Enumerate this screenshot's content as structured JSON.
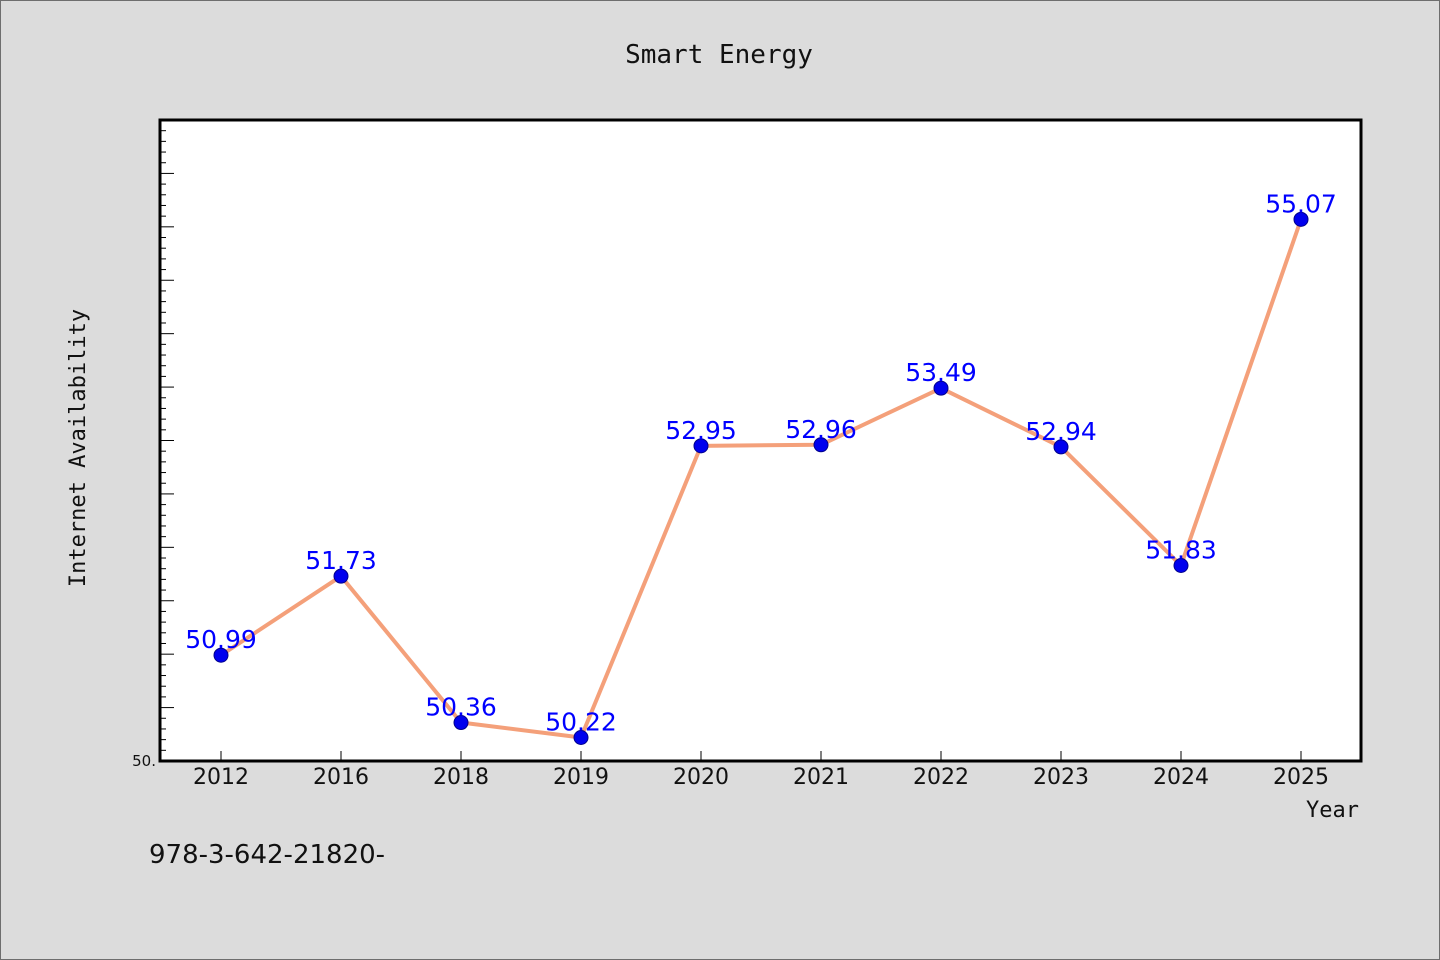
{
  "chart_data": {
    "type": "line",
    "title": "Smart Energy",
    "xlabel": "Year",
    "ylabel": "Internet Availability",
    "categories": [
      "2012",
      "2016",
      "2018",
      "2019",
      "2020",
      "2021",
      "2022",
      "2023",
      "2024",
      "2025"
    ],
    "series": [
      {
        "values": [
          50.99,
          51.73,
          50.36,
          50.22,
          52.95,
          52.96,
          53.49,
          52.94,
          51.83,
          55.07
        ],
        "data_labels": [
          "50.99",
          "51.73",
          "50.36",
          "50.22",
          "52.95",
          "52.96",
          "53.49",
          "52.94",
          "51.83",
          "55.07"
        ],
        "line_color": "#f4a07a",
        "marker_color": "#0000ee"
      }
    ],
    "ylim": [
      50.0,
      56.0
    ],
    "y_tick_labels": [
      "50."
    ],
    "y_minor_tick_step": 0.1,
    "y_major_tick_step": 0.5,
    "grid": false,
    "legend": "none",
    "data_label_color": "#0000ff",
    "plot_background": "#ffffff",
    "page_background": "#dcdcdc"
  },
  "footnote": "978-3-642-21820-"
}
